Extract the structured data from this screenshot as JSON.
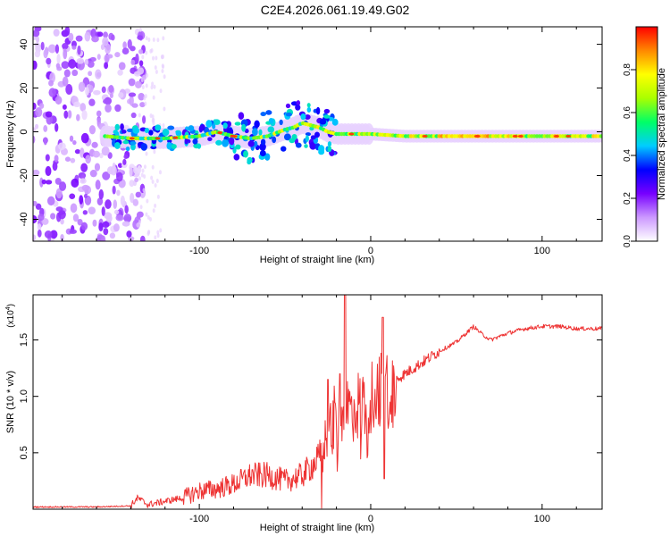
{
  "title": "C2E4.2026.061.19.49.G02",
  "chart_data": [
    {
      "type": "heatmap",
      "xlabel": "Height of straight line (km)",
      "ylabel": "Frequency (Hz)",
      "xlim": [
        -197,
        135
      ],
      "ylim": [
        -50,
        48
      ],
      "xticks": [
        -100,
        0,
        100
      ],
      "xtick_labels": [
        "-100",
        "0",
        "100"
      ],
      "yticks": [
        -40,
        -20,
        0,
        20,
        40
      ],
      "ytick_labels": [
        "-40",
        "-20",
        "0",
        "20",
        "40"
      ],
      "ridge": {
        "x": [
          -155,
          -140,
          -120,
          -100,
          -90,
          -80,
          -70,
          -60,
          -50,
          -45,
          -40,
          -35,
          -30,
          -25,
          -20,
          -10,
          0,
          20,
          60,
          100,
          135
        ],
        "y": [
          -2,
          -3,
          -3,
          -2,
          0,
          -2,
          -3,
          -2,
          1,
          2,
          4,
          3,
          2,
          0,
          -1,
          -1,
          -1,
          -2,
          -2,
          -2,
          -2
        ]
      },
      "colorbar": {
        "label": "Normalized spectral amplitude",
        "range": [
          0,
          1
        ],
        "ticks": [
          0.0,
          0.2,
          0.4,
          0.6,
          0.8
        ],
        "tick_labels": [
          "0.0",
          "0.2",
          "0.4",
          "0.6",
          "0.8"
        ],
        "colors": [
          "#ffffff",
          "#cc99ff",
          "#7700ff",
          "#0000ff",
          "#00ccff",
          "#00ff66",
          "#aaff00",
          "#ffff00",
          "#ff8800",
          "#ff0000"
        ]
      }
    },
    {
      "type": "line",
      "xlabel": "Height of straight line (km)",
      "ylabel": "SNR (10 * v/v)",
      "y_exponent_label": "(x10",
      "y_exponent_sup": "4",
      "y_exponent_close": ")",
      "xlim": [
        -197,
        135
      ],
      "ylim": [
        0,
        1.9
      ],
      "xticks": [
        -100,
        0,
        100
      ],
      "xtick_labels": [
        "-100",
        "0",
        "100"
      ],
      "yticks": [
        0.5,
        1.0,
        1.5
      ],
      "ytick_labels": [
        "0.5",
        "1.0",
        "1.5"
      ],
      "color": "#ee3333",
      "series": [
        {
          "name": "SNR",
          "x": [
            -197,
            -180,
            -160,
            -140,
            -136,
            -130,
            -120,
            -110,
            -100,
            -90,
            -80,
            -70,
            -60,
            -50,
            -40,
            -30,
            -25,
            -20,
            -15,
            -10,
            -5,
            0,
            5,
            10,
            15,
            20,
            30,
            40,
            50,
            55,
            60,
            65,
            70,
            80,
            90,
            100,
            110,
            120,
            135
          ],
          "y": [
            0.02,
            0.02,
            0.02,
            0.03,
            0.1,
            0.04,
            0.07,
            0.1,
            0.16,
            0.18,
            0.22,
            0.3,
            0.3,
            0.25,
            0.3,
            0.45,
            0.7,
            0.85,
            0.9,
            0.9,
            0.95,
            1.0,
            1.05,
            1.1,
            1.15,
            1.2,
            1.3,
            1.4,
            1.48,
            1.55,
            1.62,
            1.55,
            1.5,
            1.56,
            1.6,
            1.62,
            1.62,
            1.6,
            1.6
          ]
        }
      ],
      "spikes": [
        {
          "x": -15,
          "y": 1.93
        },
        {
          "x": 7,
          "y": 1.7
        },
        {
          "x": -18,
          "y": 1.2
        },
        {
          "x": -25,
          "y": 1.15
        },
        {
          "x": 8,
          "y": 0.27
        }
      ]
    }
  ]
}
